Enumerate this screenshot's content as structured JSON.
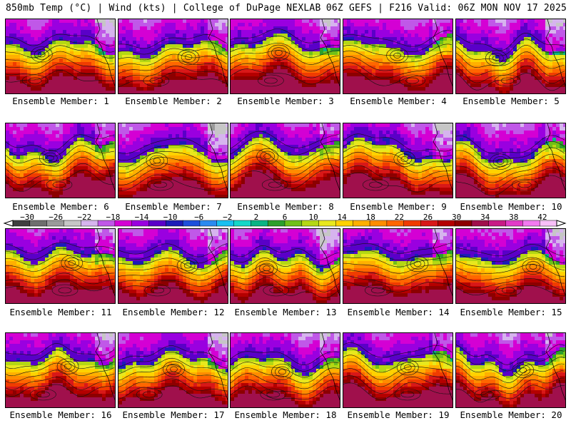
{
  "header": {
    "left": "850mb Temp (°C) | Wind (kts) | College of DuPage NEXLAB",
    "right": "06Z GEFS | F216 Valid: 06Z MON NOV 17 2025"
  },
  "chart_data": {
    "type": "heatmap",
    "title": "850mb Temp (°C) | Wind (kts)",
    "model": "GEFS",
    "run": "06Z",
    "forecast_hour": "F216",
    "valid": "06Z MON NOV 17 2025",
    "colorbar": {
      "unit": "°C",
      "min": -32,
      "max": 44,
      "tick_labels": [
        "-30",
        "-26",
        "-22",
        "-18",
        "-14",
        "-10",
        "-6",
        "-2",
        "2",
        "6",
        "10",
        "14",
        "18",
        "22",
        "26",
        "30",
        "34",
        "38",
        "42"
      ],
      "colors": [
        "#3f3f3f",
        "#6e6e6e",
        "#9a9a9a",
        "#c6c6c6",
        "#d6b4ee",
        "#c058e8",
        "#d400d4",
        "#9a00e0",
        "#5a00c8",
        "#1c1cb8",
        "#1e4fdc",
        "#2a8af0",
        "#18c0f0",
        "#14d8c8",
        "#08b484",
        "#2ca02c",
        "#70c018",
        "#b4d814",
        "#e8e81e",
        "#ffd200",
        "#ffb000",
        "#ff8c00",
        "#ff6600",
        "#f03c00",
        "#d81818",
        "#b40000",
        "#8c0000",
        "#a0104c",
        "#c81c86",
        "#e23cc8",
        "#f27af0",
        "#f8c0f8"
      ],
      "arrows": [
        "left",
        "right"
      ]
    },
    "panels": [
      {
        "member": 1,
        "label": "Ensemble Member: 1"
      },
      {
        "member": 2,
        "label": "Ensemble Member: 2"
      },
      {
        "member": 3,
        "label": "Ensemble Member: 3"
      },
      {
        "member": 4,
        "label": "Ensemble Member: 4"
      },
      {
        "member": 5,
        "label": "Ensemble Member: 5"
      },
      {
        "member": 6,
        "label": "Ensemble Member: 6"
      },
      {
        "member": 7,
        "label": "Ensemble Member: 7"
      },
      {
        "member": 8,
        "label": "Ensemble Member: 8"
      },
      {
        "member": 9,
        "label": "Ensemble Member: 9"
      },
      {
        "member": 10,
        "label": "Ensemble Member: 10"
      },
      {
        "member": 11,
        "label": "Ensemble Member: 11"
      },
      {
        "member": 12,
        "label": "Ensemble Member: 12"
      },
      {
        "member": 13,
        "label": "Ensemble Member: 13"
      },
      {
        "member": 14,
        "label": "Ensemble Member: 14"
      },
      {
        "member": 15,
        "label": "Ensemble Member: 15"
      },
      {
        "member": 16,
        "label": "Ensemble Member: 16"
      },
      {
        "member": 17,
        "label": "Ensemble Member: 17"
      },
      {
        "member": 18,
        "label": "Ensemble Member: 18"
      },
      {
        "member": 19,
        "label": "Ensemble Member: 19"
      },
      {
        "member": 20,
        "label": "Ensemble Member: 20"
      }
    ]
  }
}
